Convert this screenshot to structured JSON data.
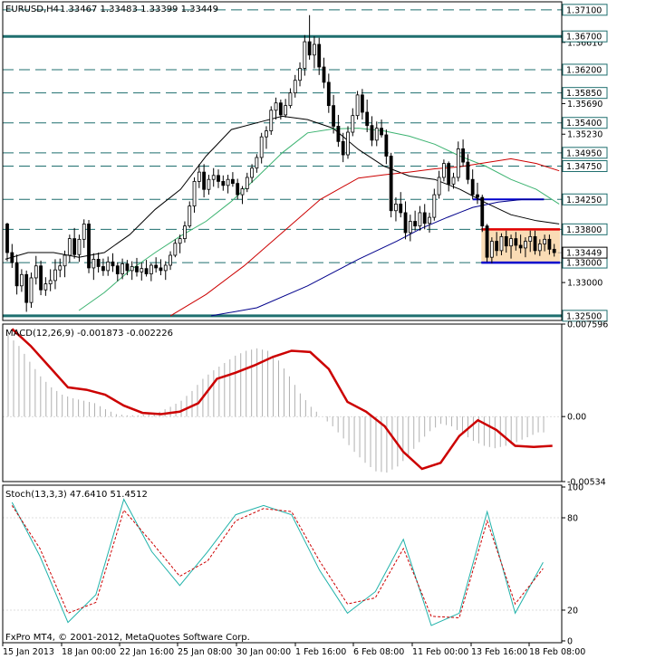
{
  "chart_data": [
    {
      "type": "candlestick",
      "symbol": "EURUSD,H4",
      "header_values": "1.33467 1.33483 1.33399 1.33449",
      "ylim": [
        1.3243,
        1.3722
      ],
      "price_ticks": [
        "1.37100",
        "1.36610",
        "1.36200",
        "1.35690",
        "1.35230",
        "1.34750",
        "1.34250",
        "1.33800",
        "1.33449",
        "1.33000",
        "1.32500"
      ],
      "levels": [
        {
          "value": 1.371,
          "label": "1.37100",
          "style": "dashed"
        },
        {
          "value": 1.367,
          "label": "1.36700",
          "style": "solid"
        },
        {
          "value": 1.362,
          "label": "1.36200",
          "style": "dashed"
        },
        {
          "value": 1.3585,
          "label": "1.35850",
          "style": "dashed"
        },
        {
          "value": 1.354,
          "label": "1.35400",
          "style": "dashed"
        },
        {
          "value": 1.3495,
          "label": "1.34950",
          "style": "dashed"
        },
        {
          "value": 1.3475,
          "label": "1.34750",
          "style": "dashed"
        },
        {
          "value": 1.3425,
          "label": "1.34250",
          "style": "dashed"
        },
        {
          "value": 1.338,
          "label": "1.33800",
          "style": "dashed"
        },
        {
          "value": 1.333,
          "label": "1.33000",
          "style": "dashed"
        },
        {
          "value": 1.325,
          "label": "1.32500",
          "style": "solid"
        }
      ],
      "current_price": "1.33449",
      "series": [
        {
          "name": "ma-black",
          "color": "#000000",
          "x": [
            1,
            10,
            20,
            30,
            40,
            50,
            60,
            70,
            80,
            90,
            100,
            110,
            120,
            130,
            140,
            150,
            160,
            170,
            180,
            190,
            200,
            210,
            219
          ],
          "values": [
            1.3335,
            1.3345,
            1.3345,
            1.3338,
            1.3345,
            1.3372,
            1.341,
            1.344,
            1.349,
            1.353,
            1.354,
            1.355,
            1.3545,
            1.3532,
            1.35,
            1.3475,
            1.346,
            1.3455,
            1.344,
            1.342,
            1.3402,
            1.3393,
            1.3388
          ]
        },
        {
          "name": "ma-green",
          "color": "#3cb371",
          "x": [
            30,
            40,
            50,
            60,
            70,
            80,
            90,
            100,
            110,
            120,
            130,
            140,
            150,
            160,
            170,
            180,
            190,
            200,
            210,
            219
          ],
          "values": [
            1.3258,
            1.3285,
            1.3318,
            1.3345,
            1.337,
            1.3392,
            1.3422,
            1.3458,
            1.3495,
            1.3525,
            1.3531,
            1.3532,
            1.3528,
            1.352,
            1.3508,
            1.349,
            1.3475,
            1.3455,
            1.344,
            1.3418
          ]
        },
        {
          "name": "ma-red",
          "color": "#cc0000",
          "x": [
            66,
            80,
            95,
            110,
            125,
            140,
            150,
            160,
            170,
            180,
            190,
            200,
            210,
            219
          ],
          "values": [
            1.325,
            1.3282,
            1.3325,
            1.3375,
            1.3425,
            1.3457,
            1.3462,
            1.3466,
            1.3471,
            1.3474,
            1.348,
            1.3486,
            1.3479,
            1.3468
          ]
        },
        {
          "name": "ma-blue",
          "color": "#00008b",
          "x": [
            82,
            100,
            120,
            140,
            155,
            165,
            175,
            185,
            195,
            205,
            213
          ],
          "values": [
            1.325,
            1.3262,
            1.3295,
            1.3335,
            1.3362,
            1.3382,
            1.3398,
            1.3413,
            1.3421,
            1.3425,
            1.3425
          ]
        }
      ],
      "candles_ohlc": [
        [
          1.3388,
          1.339,
          1.3332,
          1.3345
        ],
        [
          1.3345,
          1.3358,
          1.3322,
          1.333
        ],
        [
          1.333,
          1.3342,
          1.3282,
          1.3295
        ],
        [
          1.3295,
          1.332,
          1.3286,
          1.3312
        ],
        [
          1.3312,
          1.3318,
          1.3256,
          1.327
        ],
        [
          1.327,
          1.3315,
          1.3262,
          1.3307
        ],
        [
          1.3307,
          1.334,
          1.3297,
          1.3325
        ],
        [
          1.3325,
          1.3333,
          1.3281,
          1.3289
        ],
        [
          1.3289,
          1.3308,
          1.328,
          1.3298
        ],
        [
          1.3298,
          1.332,
          1.3287,
          1.3303
        ],
        [
          1.3303,
          1.3335,
          1.329,
          1.3319
        ],
        [
          1.3319,
          1.3336,
          1.3308,
          1.3325
        ],
        [
          1.3325,
          1.3348,
          1.3308,
          1.3341
        ],
        [
          1.3341,
          1.3372,
          1.333,
          1.3366
        ],
        [
          1.3366,
          1.3382,
          1.3336,
          1.3342
        ],
        [
          1.3342,
          1.3372,
          1.3331,
          1.3365
        ],
        [
          1.3365,
          1.3395,
          1.3352,
          1.3388
        ],
        [
          1.3388,
          1.3394,
          1.3314,
          1.3322
        ],
        [
          1.3322,
          1.3344,
          1.3304,
          1.3335
        ],
        [
          1.3335,
          1.3345,
          1.3315,
          1.3324
        ],
        [
          1.3324,
          1.3336,
          1.331,
          1.3318
        ],
        [
          1.3318,
          1.3339,
          1.331,
          1.3331
        ],
        [
          1.3331,
          1.3344,
          1.3316,
          1.3325
        ],
        [
          1.3325,
          1.333,
          1.3302,
          1.3313
        ],
        [
          1.3313,
          1.3336,
          1.3305,
          1.3328
        ],
        [
          1.3328,
          1.3334,
          1.3311,
          1.3318
        ],
        [
          1.3318,
          1.3332,
          1.3304,
          1.3324
        ],
        [
          1.3324,
          1.3337,
          1.3309,
          1.3316
        ],
        [
          1.3316,
          1.333,
          1.3303,
          1.3321
        ],
        [
          1.3321,
          1.3334,
          1.3309,
          1.3313
        ],
        [
          1.3313,
          1.3329,
          1.3302,
          1.3326
        ],
        [
          1.3326,
          1.3338,
          1.3315,
          1.3322
        ],
        [
          1.3322,
          1.3335,
          1.3311,
          1.3318
        ],
        [
          1.3318,
          1.3332,
          1.3304,
          1.3326
        ],
        [
          1.3326,
          1.3347,
          1.3319,
          1.3341
        ],
        [
          1.3341,
          1.3365,
          1.3338,
          1.3359
        ],
        [
          1.3359,
          1.3372,
          1.3344,
          1.3366
        ],
        [
          1.3366,
          1.3392,
          1.336,
          1.3385
        ],
        [
          1.3385,
          1.3422,
          1.3382,
          1.3415
        ],
        [
          1.3415,
          1.3458,
          1.3405,
          1.3452
        ],
        [
          1.3452,
          1.3478,
          1.3442,
          1.3466
        ],
        [
          1.3466,
          1.3478,
          1.3428,
          1.344
        ],
        [
          1.344,
          1.3462,
          1.3432,
          1.3455
        ],
        [
          1.3455,
          1.3472,
          1.3444,
          1.3461
        ],
        [
          1.3461,
          1.347,
          1.3442,
          1.3452
        ],
        [
          1.3452,
          1.3461,
          1.3438,
          1.3446
        ],
        [
          1.3446,
          1.3462,
          1.3434,
          1.3455
        ],
        [
          1.3455,
          1.3466,
          1.3444,
          1.3449
        ],
        [
          1.3449,
          1.3456,
          1.3425,
          1.3432
        ],
        [
          1.3432,
          1.3445,
          1.3418,
          1.3441
        ],
        [
          1.3441,
          1.3465,
          1.3436,
          1.3458
        ],
        [
          1.3458,
          1.3478,
          1.345,
          1.3472
        ],
        [
          1.3472,
          1.3493,
          1.3465,
          1.3488
        ],
        [
          1.3488,
          1.3525,
          1.3479,
          1.3519
        ],
        [
          1.3519,
          1.3535,
          1.3501,
          1.3528
        ],
        [
          1.3528,
          1.3565,
          1.3522,
          1.3559
        ],
        [
          1.3559,
          1.3578,
          1.3545,
          1.357
        ],
        [
          1.357,
          1.3575,
          1.3545,
          1.3552
        ],
        [
          1.3552,
          1.3576,
          1.3548,
          1.3566
        ],
        [
          1.3566,
          1.3592,
          1.3562,
          1.3585
        ],
        [
          1.3585,
          1.3612,
          1.3578,
          1.3604
        ],
        [
          1.3604,
          1.3631,
          1.3595,
          1.3622
        ],
        [
          1.3622,
          1.3672,
          1.3611,
          1.3662
        ],
        [
          1.3662,
          1.3702,
          1.3635,
          1.3642
        ],
        [
          1.3642,
          1.367,
          1.3622,
          1.3658
        ],
        [
          1.3658,
          1.3668,
          1.3612,
          1.3624
        ],
        [
          1.3624,
          1.3638,
          1.3592,
          1.3601
        ],
        [
          1.3601,
          1.3614,
          1.3555,
          1.3566
        ],
        [
          1.3566,
          1.3582,
          1.3524,
          1.3535
        ],
        [
          1.3535,
          1.3552,
          1.3504,
          1.3512
        ],
        [
          1.3512,
          1.3525,
          1.3481,
          1.3492
        ],
        [
          1.3492,
          1.3535,
          1.3486,
          1.3526
        ],
        [
          1.3526,
          1.3562,
          1.352,
          1.3551
        ],
        [
          1.3551,
          1.3588,
          1.3545,
          1.3582
        ],
        [
          1.3582,
          1.3591,
          1.3545,
          1.3556
        ],
        [
          1.3556,
          1.3575,
          1.3526,
          1.3536
        ],
        [
          1.3536,
          1.355,
          1.3505,
          1.3514
        ],
        [
          1.3514,
          1.3542,
          1.3505,
          1.3532
        ],
        [
          1.3532,
          1.3545,
          1.3518,
          1.3522
        ],
        [
          1.3522,
          1.353,
          1.3478,
          1.349
        ],
        [
          1.349,
          1.3495,
          1.3398,
          1.3408
        ],
        [
          1.3408,
          1.3428,
          1.3392,
          1.3418
        ],
        [
          1.3418,
          1.3436,
          1.3398,
          1.3405
        ],
        [
          1.3405,
          1.3422,
          1.3365,
          1.3375
        ],
        [
          1.3375,
          1.3402,
          1.3362,
          1.3392
        ],
        [
          1.3392,
          1.3408,
          1.3378,
          1.3385
        ],
        [
          1.3385,
          1.3415,
          1.3378,
          1.3405
        ],
        [
          1.3405,
          1.3418,
          1.338,
          1.3389
        ],
        [
          1.3389,
          1.3405,
          1.3375,
          1.3398
        ],
        [
          1.3398,
          1.3441,
          1.3393,
          1.3432
        ],
        [
          1.3432,
          1.3468,
          1.3426,
          1.3458
        ],
        [
          1.3458,
          1.3485,
          1.3452,
          1.3479
        ],
        [
          1.3479,
          1.3482,
          1.3437,
          1.3448
        ],
        [
          1.3448,
          1.3465,
          1.3441,
          1.3458
        ],
        [
          1.3458,
          1.3512,
          1.3452,
          1.3501
        ],
        [
          1.3501,
          1.3515,
          1.3474,
          1.3481
        ],
        [
          1.3481,
          1.3493,
          1.3448,
          1.3455
        ],
        [
          1.3455,
          1.347,
          1.3425,
          1.3432
        ],
        [
          1.3432,
          1.345,
          1.3418,
          1.3428
        ],
        [
          1.3428,
          1.3432,
          1.3376,
          1.3385
        ],
        [
          1.3385,
          1.3388,
          1.3331,
          1.3338
        ],
        [
          1.3338,
          1.3368,
          1.3329,
          1.3362
        ],
        [
          1.3362,
          1.3376,
          1.334,
          1.3348
        ],
        [
          1.3348,
          1.3374,
          1.3341,
          1.3369
        ],
        [
          1.3369,
          1.3378,
          1.3345,
          1.3355
        ],
        [
          1.3355,
          1.3372,
          1.3336,
          1.3366
        ],
        [
          1.3366,
          1.3376,
          1.3348,
          1.3356
        ],
        [
          1.3356,
          1.3372,
          1.3344,
          1.3352
        ],
        [
          1.3352,
          1.3368,
          1.3338,
          1.3362
        ],
        [
          1.3362,
          1.3378,
          1.3346,
          1.3369
        ],
        [
          1.3369,
          1.3378,
          1.3342,
          1.3348
        ],
        [
          1.3348,
          1.3365,
          1.334,
          1.3358
        ],
        [
          1.3358,
          1.3372,
          1.3347,
          1.3365
        ],
        [
          1.3365,
          1.3372,
          1.3342,
          1.335
        ],
        [
          1.335,
          1.3358,
          1.3339,
          1.3345
        ]
      ]
    },
    {
      "type": "line+histogram",
      "title": "MACD(12,26,9) -0.001873 -0.002226",
      "ylim": [
        -0.00534,
        0.007596
      ],
      "ticks": [
        "0.007596",
        "0.00",
        "-0.00534"
      ],
      "signal": {
        "name": "signal",
        "color": "#cc0000",
        "x": [
          5,
          15,
          25,
          35,
          45,
          55,
          65,
          75,
          85,
          95,
          105,
          115,
          125,
          135,
          145,
          155,
          165,
          175,
          185,
          195,
          205,
          215,
          225,
          235,
          245,
          255,
          265,
          275,
          285,
          295
        ],
        "values": [
          0.0072,
          0.0058,
          0.0041,
          0.0024,
          0.0022,
          0.0018,
          0.0009,
          0.0003,
          0.0002,
          0.0004,
          0.0011,
          0.0031,
          0.0036,
          0.0042,
          0.0049,
          0.0054,
          0.0053,
          0.0039,
          0.0012,
          0.0004,
          -0.0008,
          -0.0029,
          -0.0043,
          -0.0038,
          -0.0016,
          -0.0003,
          -0.0011,
          -0.0024,
          -0.0025,
          -0.0024
        ]
      },
      "histogram": [
        0.0067,
        0.0058,
        0.0045,
        0.0033,
        0.0024,
        0.0018,
        0.0015,
        0.0013,
        0.0011,
        0.0006,
        0.0002,
        0.0001,
        0.0001,
        0.0002,
        0.0004,
        0.0008,
        0.0013,
        0.0021,
        0.0031,
        0.0038,
        0.0044,
        0.005,
        0.0054,
        0.0056,
        0.0054,
        0.0046,
        0.0033,
        0.0019,
        0.0008,
        0.0,
        -0.0008,
        -0.0018,
        -0.0029,
        -0.0038,
        -0.0045,
        -0.0046,
        -0.0041,
        -0.0032,
        -0.0021,
        -0.0012,
        -0.0006,
        -0.0008,
        -0.0014,
        -0.002,
        -0.0024,
        -0.0026,
        -0.0024,
        -0.0021,
        -0.0017,
        -0.0013
      ]
    },
    {
      "type": "line",
      "title": "Stoch(13,3,3) 47.6410 51.4512",
      "ylim": [
        0,
        100
      ],
      "ticks": [
        "100",
        "80",
        "20",
        "0"
      ],
      "series": [
        {
          "name": "main",
          "color": "#20b2aa",
          "x": [
            5,
            20,
            35,
            50,
            65,
            80,
            95,
            110,
            125,
            140,
            155,
            170,
            185,
            200,
            215,
            230,
            245,
            260,
            275,
            290
          ],
          "values": [
            90,
            55,
            12,
            30,
            92,
            58,
            36,
            58,
            82,
            88,
            82,
            46,
            18,
            32,
            66,
            10,
            18,
            84,
            18,
            51
          ]
        },
        {
          "name": "signal",
          "color": "#cc0000",
          "x": [
            5,
            20,
            35,
            50,
            65,
            80,
            95,
            110,
            125,
            140,
            155,
            170,
            185,
            200,
            215,
            230,
            245,
            260,
            275,
            290
          ],
          "values": [
            88,
            60,
            18,
            25,
            85,
            64,
            42,
            52,
            78,
            86,
            84,
            52,
            24,
            28,
            60,
            16,
            15,
            78,
            24,
            47
          ]
        }
      ]
    }
  ],
  "time_labels": [
    "15 Jan 2013",
    "18 Jan 00:00",
    "22 Jan 16:00",
    "25 Jan 08:00",
    "30 Jan 00:00",
    "1 Feb 16:00",
    "6 Feb 08:00",
    "11 Feb 00:00",
    "13 Feb 16:00",
    "18 Feb 08:00"
  ],
  "copyright": "FxPro MT4, © 2001-2012, MetaQuotes Software Corp."
}
